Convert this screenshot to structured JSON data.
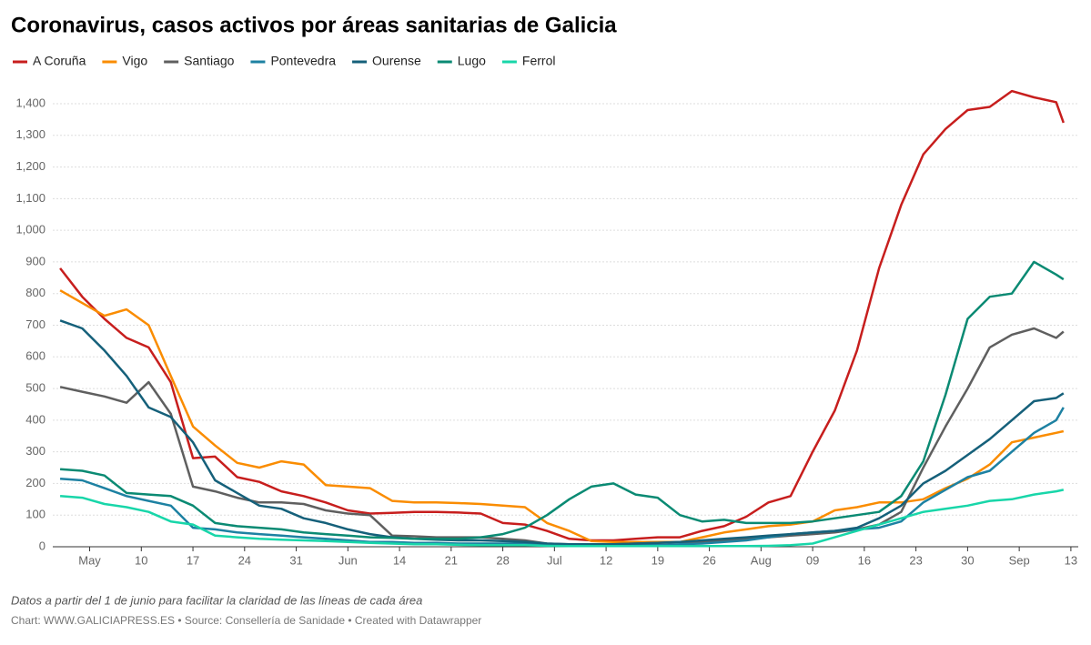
{
  "chart_data": {
    "type": "line",
    "title": "Coronavirus, casos activos por áreas sanitarias de Galicia",
    "note": "Datos a partir del 1 de junio para facilitar la claridad de las líneas de cada área",
    "credit": "Chart: WWW.GALICIAPRESS.ES • Source: Consellería de Sanidade • Created with Datawrapper",
    "x": [
      "04-29",
      "05-02",
      "05-05",
      "05-08",
      "05-11",
      "05-14",
      "05-17",
      "05-20",
      "05-23",
      "05-26",
      "05-29",
      "06-01",
      "06-04",
      "06-07",
      "06-10",
      "06-13",
      "06-16",
      "06-19",
      "06-22",
      "06-25",
      "06-28",
      "07-01",
      "07-04",
      "07-07",
      "07-10",
      "07-13",
      "07-16",
      "07-19",
      "07-22",
      "07-25",
      "07-28",
      "07-31",
      "08-03",
      "08-06",
      "08-09",
      "08-12",
      "08-15",
      "08-18",
      "08-21",
      "08-24",
      "08-27",
      "08-30",
      "09-02",
      "09-05",
      "09-08",
      "09-11",
      "09-12"
    ],
    "xlim": [
      "04-28",
      "09-14"
    ],
    "xticks": [
      {
        "value": "05-03",
        "label": "May"
      },
      {
        "value": "05-10",
        "label": "10"
      },
      {
        "value": "05-17",
        "label": "17"
      },
      {
        "value": "05-24",
        "label": "24"
      },
      {
        "value": "05-31",
        "label": "31"
      },
      {
        "value": "06-07",
        "label": "Jun"
      },
      {
        "value": "06-14",
        "label": "14"
      },
      {
        "value": "06-21",
        "label": "21"
      },
      {
        "value": "06-28",
        "label": "28"
      },
      {
        "value": "07-05",
        "label": "Jul"
      },
      {
        "value": "07-12",
        "label": "12"
      },
      {
        "value": "07-19",
        "label": "19"
      },
      {
        "value": "07-26",
        "label": "26"
      },
      {
        "value": "08-02",
        "label": "Aug"
      },
      {
        "value": "08-09",
        "label": "09"
      },
      {
        "value": "08-16",
        "label": "16"
      },
      {
        "value": "08-23",
        "label": "23"
      },
      {
        "value": "08-30",
        "label": "30"
      },
      {
        "value": "09-06",
        "label": "Sep"
      },
      {
        "value": "09-13",
        "label": "13"
      }
    ],
    "ylim": [
      0,
      1400
    ],
    "yticks": [
      0,
      100,
      200,
      300,
      400,
      500,
      600,
      700,
      800,
      900,
      {
        "value": 1000,
        "label": "1,000"
      },
      {
        "value": 1100,
        "label": "1,100"
      },
      {
        "value": 1200,
        "label": "1,200"
      },
      {
        "value": 1300,
        "label": "1,300"
      },
      {
        "value": 1400,
        "label": "1,400"
      }
    ],
    "grid": true,
    "series": [
      {
        "name": "A Coruña",
        "color": "#c71e1d",
        "values": [
          880,
          790,
          720,
          660,
          630,
          520,
          280,
          285,
          220,
          205,
          175,
          160,
          140,
          115,
          105,
          107,
          110,
          110,
          108,
          105,
          75,
          70,
          50,
          25,
          20,
          20,
          25,
          30,
          30,
          50,
          65,
          95,
          140,
          160,
          300,
          430,
          620,
          880,
          1080,
          1240,
          1320,
          1380,
          1390,
          1440,
          1420,
          1405,
          1340
        ]
      },
      {
        "name": "Vigo",
        "color": "#fa8c00",
        "values": [
          810,
          770,
          730,
          750,
          700,
          540,
          380,
          320,
          265,
          250,
          270,
          260,
          195,
          190,
          185,
          145,
          140,
          140,
          138,
          135,
          130,
          125,
          75,
          50,
          18,
          15,
          15,
          15,
          15,
          30,
          45,
          55,
          65,
          70,
          80,
          115,
          125,
          140,
          140,
          150,
          185,
          215,
          260,
          330,
          345,
          360,
          365
        ]
      },
      {
        "name": "Santiago",
        "color": "#5f5f5f",
        "values": [
          505,
          490,
          475,
          455,
          520,
          420,
          190,
          175,
          155,
          140,
          140,
          135,
          115,
          105,
          100,
          35,
          33,
          30,
          30,
          30,
          25,
          20,
          10,
          8,
          8,
          8,
          10,
          12,
          15,
          15,
          20,
          25,
          30,
          35,
          40,
          45,
          55,
          70,
          110,
          250,
          380,
          500,
          630,
          670,
          690,
          660,
          680
        ]
      },
      {
        "name": "Pontevedra",
        "color": "#1d81a2",
        "values": [
          215,
          210,
          185,
          160,
          145,
          130,
          60,
          55,
          45,
          40,
          35,
          30,
          25,
          20,
          15,
          15,
          12,
          12,
          10,
          10,
          10,
          10,
          5,
          5,
          5,
          5,
          5,
          5,
          8,
          10,
          15,
          20,
          30,
          40,
          45,
          50,
          55,
          60,
          80,
          140,
          180,
          220,
          240,
          300,
          360,
          400,
          440
        ]
      },
      {
        "name": "Ourense",
        "color": "#15607a",
        "values": [
          715,
          690,
          620,
          540,
          440,
          410,
          330,
          210,
          170,
          130,
          120,
          90,
          75,
          55,
          40,
          30,
          25,
          22,
          20,
          20,
          18,
          15,
          10,
          8,
          8,
          8,
          10,
          12,
          15,
          20,
          25,
          30,
          35,
          40,
          45,
          50,
          60,
          90,
          130,
          200,
          240,
          290,
          340,
          400,
          460,
          470,
          485
        ]
      },
      {
        "name": "Lugo",
        "color": "#0a8a73",
        "values": [
          245,
          240,
          225,
          170,
          165,
          160,
          130,
          75,
          65,
          60,
          55,
          45,
          40,
          35,
          30,
          28,
          25,
          25,
          25,
          30,
          40,
          60,
          100,
          150,
          190,
          200,
          165,
          155,
          100,
          80,
          85,
          75,
          75,
          75,
          80,
          90,
          100,
          110,
          160,
          270,
          480,
          720,
          790,
          800,
          900,
          860,
          845
        ]
      },
      {
        "name": "Ferrol",
        "color": "#18d6a9",
        "values": [
          160,
          155,
          135,
          125,
          110,
          80,
          70,
          35,
          30,
          25,
          22,
          20,
          18,
          15,
          12,
          10,
          8,
          8,
          6,
          5,
          5,
          5,
          3,
          2,
          2,
          2,
          2,
          2,
          2,
          2,
          2,
          2,
          3,
          5,
          10,
          30,
          50,
          70,
          90,
          110,
          120,
          130,
          145,
          150,
          165,
          175,
          180
        ]
      }
    ]
  }
}
